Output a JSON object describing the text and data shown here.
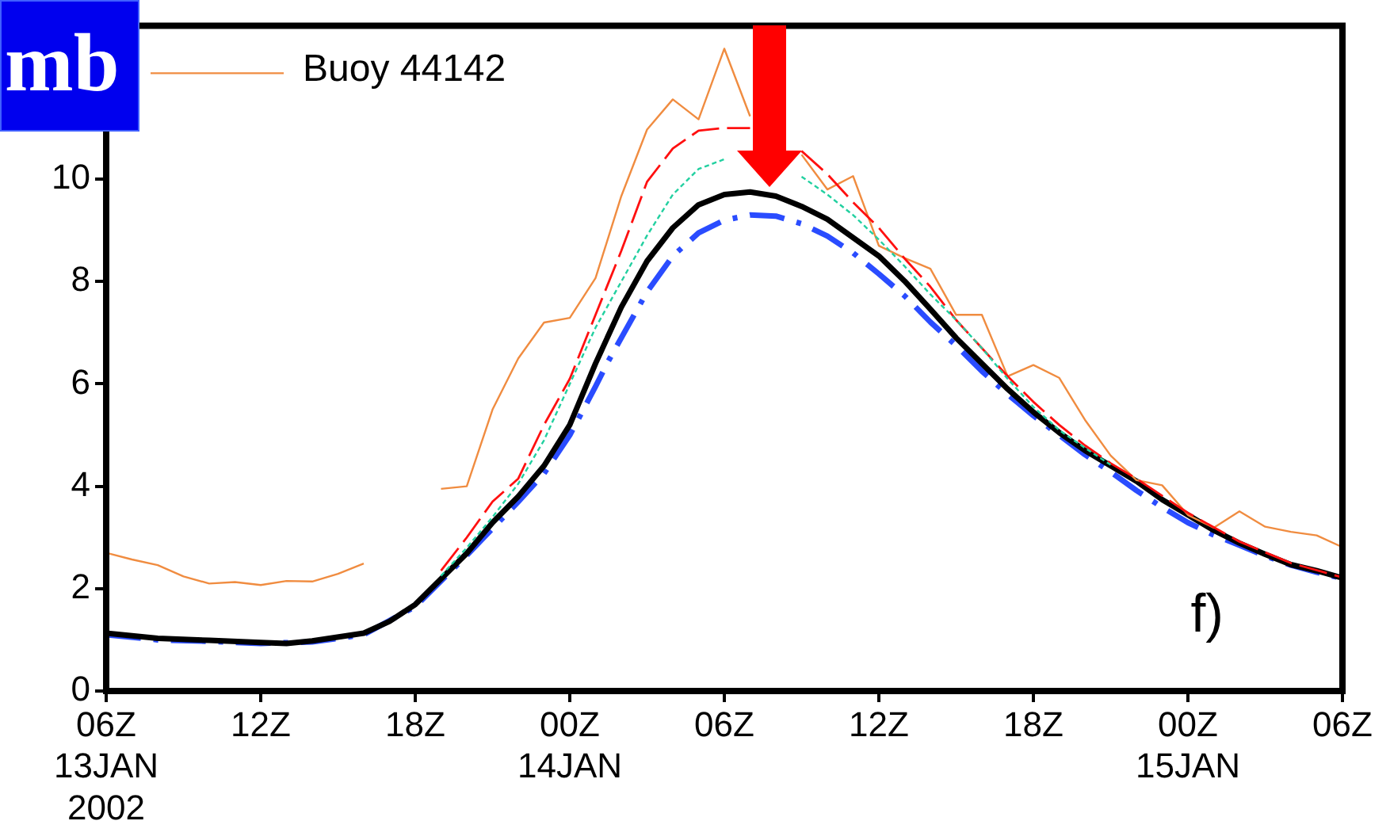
{
  "chart_data": {
    "type": "line",
    "ylabel": "mb",
    "annotations": [
      "f)"
    ],
    "xlim": [
      "2002-01-13T06:00",
      "2002-01-15T06:00"
    ],
    "xticks": [
      {
        "value": "2002-01-13T06:00",
        "label": "06Z\n13JAN\n2002"
      },
      {
        "value": "2002-01-13T12:00",
        "label": "12Z"
      },
      {
        "value": "2002-01-13T18:00",
        "label": "18Z"
      },
      {
        "value": "2002-01-14T00:00",
        "label": "00Z\n14JAN"
      },
      {
        "value": "2002-01-14T06:00",
        "label": "06Z"
      },
      {
        "value": "2002-01-14T12:00",
        "label": "12Z"
      },
      {
        "value": "2002-01-14T18:00",
        "label": "18Z"
      },
      {
        "value": "2002-01-15T00:00",
        "label": "00Z\n15JAN"
      },
      {
        "value": "2002-01-15T06:00",
        "label": "06Z"
      }
    ],
    "ylim": [
      0,
      13
    ],
    "yticks": [
      0,
      2,
      4,
      6,
      8,
      10
    ],
    "grid": false,
    "legend": "top left",
    "marker": "none",
    "series": [
      {
        "name": "Buoy 44142",
        "color": "#f08c40",
        "line_style": "solid",
        "x": [
          "2002-01-13T06:00",
          "2002-01-13T07:00",
          "2002-01-13T08:00",
          "2002-01-13T09:00",
          "2002-01-13T10:00",
          "2002-01-13T11:00",
          "2002-01-13T12:00",
          "2002-01-13T13:00",
          "2002-01-13T14:00",
          "2002-01-13T15:00",
          "2002-01-13T16:00",
          "2002-01-13T17:00",
          "2002-01-13T18:00",
          "2002-01-13T19:00",
          "2002-01-13T20:00",
          "2002-01-13T21:00",
          "2002-01-13T22:00",
          "2002-01-13T23:00",
          "2002-01-14T00:00",
          "2002-01-14T01:00",
          "2002-01-14T02:00",
          "2002-01-14T03:00",
          "2002-01-14T04:00",
          "2002-01-14T05:00",
          "2002-01-14T06:00",
          "2002-01-14T07:00",
          "2002-01-14T08:00",
          "2002-01-14T09:00",
          "2002-01-14T10:00",
          "2002-01-14T11:00",
          "2002-01-14T12:00",
          "2002-01-14T13:00",
          "2002-01-14T14:00",
          "2002-01-14T15:00",
          "2002-01-14T16:00",
          "2002-01-14T17:00",
          "2002-01-14T18:00",
          "2002-01-14T19:00",
          "2002-01-14T20:00",
          "2002-01-14T21:00",
          "2002-01-14T22:00",
          "2002-01-14T23:00",
          "2002-01-15T00:00",
          "2002-01-15T01:00",
          "2002-01-15T02:00",
          "2002-01-15T03:00",
          "2002-01-15T04:00",
          "2002-01-15T05:00",
          "2002-01-15T06:00"
        ],
        "values": [
          2.7,
          2.57,
          2.46,
          2.24,
          2.1,
          2.13,
          2.07,
          2.15,
          2.14,
          2.29,
          2.49,
          null,
          null,
          3.95,
          4.0,
          5.5,
          6.5,
          7.2,
          7.29,
          8.07,
          9.67,
          10.97,
          11.56,
          11.17,
          12.55,
          11.23,
          null,
          10.48,
          9.8,
          10.06,
          8.7,
          8.46,
          8.25,
          7.35,
          7.35,
          6.15,
          6.37,
          6.12,
          5.3,
          4.6,
          4.12,
          4.02,
          3.44,
          3.19,
          3.51,
          3.21,
          3.11,
          3.04,
          2.81
        ]
      },
      {
        "color": "#ff1010",
        "line_style": "dashed",
        "x": [
          "2002-01-13T19:00",
          "2002-01-13T20:00",
          "2002-01-13T21:00",
          "2002-01-13T22:00",
          "2002-01-13T23:00",
          "2002-01-14T00:00",
          "2002-01-14T01:00",
          "2002-01-14T02:00",
          "2002-01-14T03:00",
          "2002-01-14T04:00",
          "2002-01-14T05:00",
          "2002-01-14T06:00",
          "2002-01-14T07:00",
          "2002-01-14T08:00",
          "2002-01-14T09:00",
          "2002-01-14T10:00",
          "2002-01-14T11:00",
          "2002-01-14T12:00",
          "2002-01-14T13:00",
          "2002-01-14T14:00",
          "2002-01-14T15:00",
          "2002-01-14T16:00",
          "2002-01-14T17:00",
          "2002-01-14T18:00",
          "2002-01-14T19:00",
          "2002-01-14T20:00",
          "2002-01-14T21:00",
          "2002-01-14T22:00",
          "2002-01-15T00:00",
          "2002-01-15T02:00",
          "2002-01-15T04:00",
          "2002-01-15T06:00"
        ],
        "values": [
          2.35,
          3.0,
          3.7,
          4.15,
          5.2,
          6.1,
          7.35,
          8.6,
          9.95,
          10.6,
          10.95,
          11.0,
          11.0,
          null,
          10.55,
          10.1,
          9.55,
          9.05,
          8.45,
          7.9,
          7.25,
          6.7,
          6.15,
          5.65,
          5.2,
          4.8,
          4.45,
          4.15,
          3.48,
          2.92,
          2.5,
          2.22
        ]
      },
      {
        "color": "#22d0a0",
        "line_style": "dotted",
        "x": [
          "2002-01-13T19:00",
          "2002-01-13T20:00",
          "2002-01-13T21:00",
          "2002-01-13T22:00",
          "2002-01-13T23:00",
          "2002-01-14T00:00",
          "2002-01-14T01:00",
          "2002-01-14T02:00",
          "2002-01-14T03:00",
          "2002-01-14T04:00",
          "2002-01-14T05:00",
          "2002-01-14T06:00",
          "2002-01-14T07:00",
          "2002-01-14T08:00",
          "2002-01-14T09:00",
          "2002-01-14T10:00",
          "2002-01-14T11:00",
          "2002-01-14T12:00",
          "2002-01-14T13:00",
          "2002-01-14T14:00",
          "2002-01-14T15:00",
          "2002-01-14T16:00",
          "2002-01-14T17:00",
          "2002-01-14T18:00",
          "2002-01-14T19:00",
          "2002-01-14T20:00",
          "2002-01-14T21:00"
        ],
        "values": [
          2.25,
          2.8,
          3.4,
          4.05,
          4.9,
          6.0,
          7.1,
          8.0,
          8.9,
          9.7,
          10.2,
          10.39,
          null,
          null,
          10.05,
          9.7,
          9.3,
          8.82,
          8.3,
          7.75,
          7.25,
          6.7,
          6.1,
          5.55,
          5.1,
          4.75,
          4.42
        ]
      },
      {
        "color": "#2a4cff",
        "line_style": "dashdot",
        "x": [
          "2002-01-13T06:00",
          "2002-01-13T08:00",
          "2002-01-13T10:00",
          "2002-01-13T12:00",
          "2002-01-13T14:00",
          "2002-01-13T16:00",
          "2002-01-13T18:00",
          "2002-01-13T20:00",
          "2002-01-13T22:00",
          "2002-01-13T23:00",
          "2002-01-14T00:00",
          "2002-01-14T01:00",
          "2002-01-14T01:30",
          "2002-01-14T02:00",
          "2002-01-14T03:00",
          "2002-01-14T04:00",
          "2002-01-14T05:00",
          "2002-01-14T06:00",
          "2002-01-14T07:00",
          "2002-01-14T08:00",
          "2002-01-14T09:00",
          "2002-01-14T10:00",
          "2002-01-14T11:00",
          "2002-01-14T12:00",
          "2002-01-14T13:00",
          "2002-01-14T14:00",
          "2002-01-14T15:00",
          "2002-01-14T16:00",
          "2002-01-14T17:00",
          "2002-01-14T18:00",
          "2002-01-14T19:00",
          "2002-01-14T20:00",
          "2002-01-14T21:00",
          "2002-01-14T22:00",
          "2002-01-14T23:00",
          "2002-01-15T00:00",
          "2002-01-15T01:00",
          "2002-01-15T02:00",
          "2002-01-15T03:00",
          "2002-01-15T04:00",
          "2002-01-15T05:00",
          "2002-01-15T06:00"
        ],
        "values": [
          1.1,
          1.0,
          0.97,
          0.93,
          0.96,
          1.1,
          1.65,
          2.65,
          3.7,
          4.25,
          5.0,
          5.95,
          6.45,
          6.9,
          7.8,
          8.5,
          8.95,
          9.2,
          9.3,
          9.28,
          9.13,
          8.89,
          8.56,
          8.15,
          7.72,
          7.21,
          6.75,
          6.25,
          5.8,
          5.38,
          5.0,
          4.62,
          4.28,
          3.92,
          3.59,
          3.29,
          3.05,
          2.85,
          2.64,
          2.46,
          2.32,
          2.2
        ]
      },
      {
        "color": "#000000",
        "line_style": "solid",
        "x": [
          "2002-01-13T06:00",
          "2002-01-13T08:00",
          "2002-01-13T10:00",
          "2002-01-13T12:00",
          "2002-01-13T13:00",
          "2002-01-13T14:00",
          "2002-01-13T16:00",
          "2002-01-13T17:00",
          "2002-01-13T18:00",
          "2002-01-13T19:00",
          "2002-01-13T20:00",
          "2002-01-13T21:00",
          "2002-01-13T22:00",
          "2002-01-13T23:00",
          "2002-01-14T00:00",
          "2002-01-14T01:00",
          "2002-01-14T02:00",
          "2002-01-14T03:00",
          "2002-01-14T04:00",
          "2002-01-14T05:00",
          "2002-01-14T06:00",
          "2002-01-14T07:00",
          "2002-01-14T08:00",
          "2002-01-14T09:00",
          "2002-01-14T10:00",
          "2002-01-14T11:00",
          "2002-01-14T12:00",
          "2002-01-14T13:00",
          "2002-01-14T14:00",
          "2002-01-14T15:00",
          "2002-01-14T16:00",
          "2002-01-14T17:00",
          "2002-01-14T18:00",
          "2002-01-14T19:00",
          "2002-01-14T20:00",
          "2002-01-14T21:00",
          "2002-01-14T22:00",
          "2002-01-14T23:00",
          "2002-01-15T00:00",
          "2002-01-15T01:00",
          "2002-01-15T02:00",
          "2002-01-15T03:00",
          "2002-01-15T04:00",
          "2002-01-15T05:00",
          "2002-01-15T06:00"
        ],
        "values": [
          1.13,
          1.03,
          0.99,
          0.95,
          0.93,
          0.98,
          1.13,
          1.36,
          1.69,
          2.19,
          2.69,
          3.29,
          3.8,
          4.4,
          5.2,
          6.4,
          7.5,
          8.4,
          9.05,
          9.5,
          9.7,
          9.75,
          9.67,
          9.47,
          9.22,
          8.86,
          8.5,
          8.01,
          7.46,
          6.9,
          6.4,
          5.9,
          5.45,
          5.05,
          4.7,
          4.4,
          4.1,
          3.74,
          3.44,
          3.14,
          2.89,
          2.67,
          2.47,
          2.35,
          2.21
        ]
      }
    ]
  }
}
